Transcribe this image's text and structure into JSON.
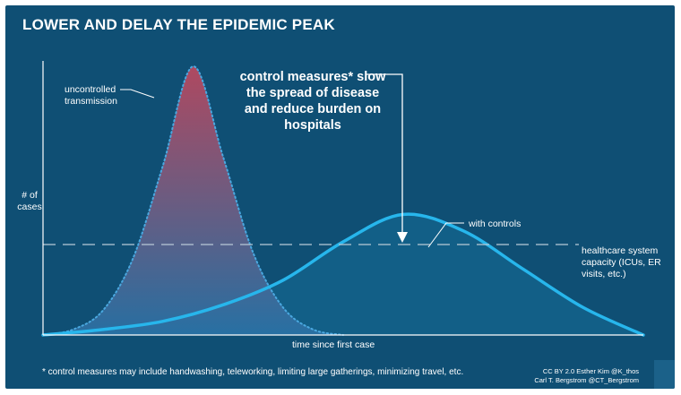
{
  "title": "LOWER AND DELAY THE EPIDEMIC PEAK",
  "callout": "control measures* slow the spread of disease and reduce burden on hospitals",
  "footnote": "* control measures may include handwashing, teleworking, limiting large gatherings, minimizing travel, etc.",
  "credits": [
    "CC BY 2.0  Esther Kim  @K_thos",
    "Carl T. Bergstrom  @CT_Bergstrom"
  ],
  "colors": {
    "background": "#0f4f74",
    "uncontrolled_top": "#c0485e",
    "uncontrolled_bottom": "#2a72a6",
    "with_controls_line": "#27b6ec",
    "capacity_line": "#b8c9d6"
  },
  "chart_data": {
    "type": "area",
    "xlabel": "time since first case",
    "ylabel": "# of cases",
    "xlim": [
      0,
      100
    ],
    "ylim": [
      0,
      100
    ],
    "grid": false,
    "series": [
      {
        "name": "uncontrolled transmission",
        "x": [
          0,
          5,
          10,
          15,
          20,
          25,
          30,
          35,
          40,
          45,
          50
        ],
        "y": [
          0,
          2,
          9,
          28,
          62,
          98,
          65,
          30,
          10,
          2,
          0
        ]
      },
      {
        "name": "with controls",
        "x": [
          0,
          10,
          20,
          30,
          40,
          50,
          60,
          70,
          80,
          90,
          100
        ],
        "y": [
          0,
          2,
          5,
          11,
          20,
          34,
          44,
          38,
          24,
          10,
          0
        ]
      }
    ],
    "reference_line": {
      "label": "healthcare system capacity (ICUs, ER visits, etc.)",
      "y": 33
    }
  }
}
